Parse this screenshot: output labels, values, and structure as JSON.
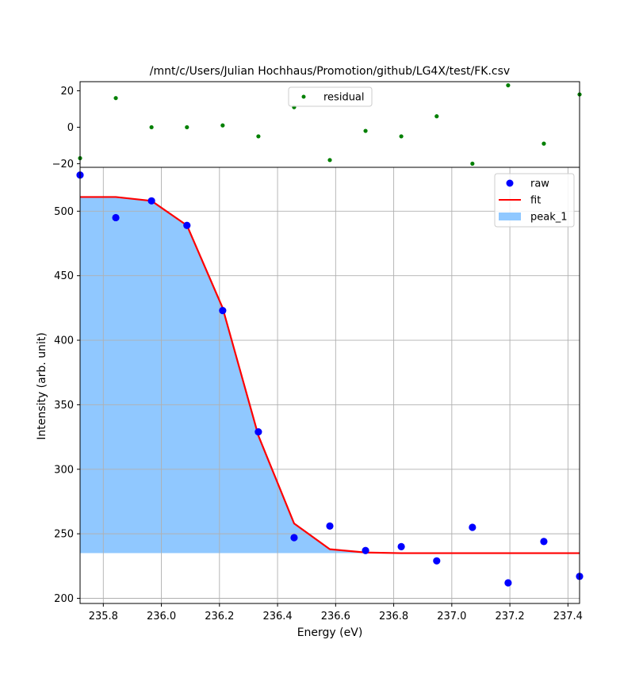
{
  "title": "/mnt/c/Users/Julian Hochhaus/Promotion/github/LG4X/test/FK.csv",
  "colors": {
    "raw": "#0000ff",
    "fit": "#ff0000",
    "peak_1": "#90c8ff",
    "residual": "#008000",
    "grid": "#b0b0b0"
  },
  "chart_data": [
    {
      "id": "residual",
      "type": "scatter",
      "title": "/mnt/c/Users/Julian Hochhaus/Promotion/github/LG4X/test/FK.csv",
      "xlabel": "",
      "ylabel": "",
      "xlim": [
        235.72,
        237.44
      ],
      "ylim": [
        -22,
        25
      ],
      "yticks": [
        -20,
        0,
        20
      ],
      "ytick_labels": [
        "−20",
        "0",
        "20"
      ],
      "grid": false,
      "legend_position": "top-center",
      "series": [
        {
          "name": "residual",
          "x": [
            235.72,
            235.843,
            235.966,
            236.088,
            236.211,
            236.334,
            236.457,
            236.58,
            236.703,
            236.826,
            236.948,
            237.071,
            237.194,
            237.317,
            237.44
          ],
          "y": [
            -17,
            16,
            0,
            0,
            1,
            -5,
            11,
            -18,
            -2,
            -5,
            6,
            -20,
            23,
            -9,
            18
          ]
        }
      ]
    },
    {
      "id": "main",
      "type": "scatter",
      "xlabel": "Energy (eV)",
      "ylabel": "Intensity (arb. unit)",
      "xlim": [
        235.72,
        237.44
      ],
      "ylim": [
        196,
        534
      ],
      "xticks": [
        235.8,
        236.0,
        236.2,
        236.4,
        236.6,
        236.8,
        237.0,
        237.2,
        237.4
      ],
      "xtick_labels": [
        "235.8",
        "236.0",
        "236.2",
        "236.4",
        "236.6",
        "236.8",
        "237.0",
        "237.2",
        "237.4"
      ],
      "yticks": [
        200,
        250,
        300,
        350,
        400,
        450,
        500
      ],
      "ytick_labels": [
        "200",
        "250",
        "300",
        "350",
        "400",
        "450",
        "500"
      ],
      "grid": true,
      "legend_position": "top-right",
      "series": [
        {
          "name": "raw",
          "kind": "points",
          "x": [
            235.72,
            235.843,
            235.966,
            236.088,
            236.211,
            236.334,
            236.457,
            236.58,
            236.703,
            236.826,
            236.948,
            237.071,
            237.194,
            237.317,
            237.44
          ],
          "y": [
            528,
            495,
            508,
            489,
            423,
            329,
            247,
            256,
            237,
            240,
            229,
            255,
            212,
            244,
            217
          ]
        },
        {
          "name": "fit",
          "kind": "line",
          "x": [
            235.72,
            235.843,
            235.966,
            236.088,
            236.211,
            236.334,
            236.457,
            236.58,
            236.703,
            236.826,
            236.948,
            237.071,
            237.194,
            237.317,
            237.44
          ],
          "y": [
            511,
            511,
            508,
            489,
            425,
            326,
            258,
            238,
            235.5,
            235,
            235,
            235,
            235,
            235,
            235
          ]
        },
        {
          "name": "peak_1",
          "kind": "area",
          "baseline": 235,
          "x": [
            235.72,
            235.843,
            235.966,
            236.088,
            236.211,
            236.334,
            236.457,
            236.58,
            236.703,
            236.826,
            236.948,
            237.071,
            237.194,
            237.317,
            237.44
          ],
          "y": [
            511,
            511,
            508,
            489,
            425,
            326,
            258,
            238,
            235.5,
            235,
            235,
            235,
            235,
            235,
            235
          ]
        }
      ]
    }
  ]
}
